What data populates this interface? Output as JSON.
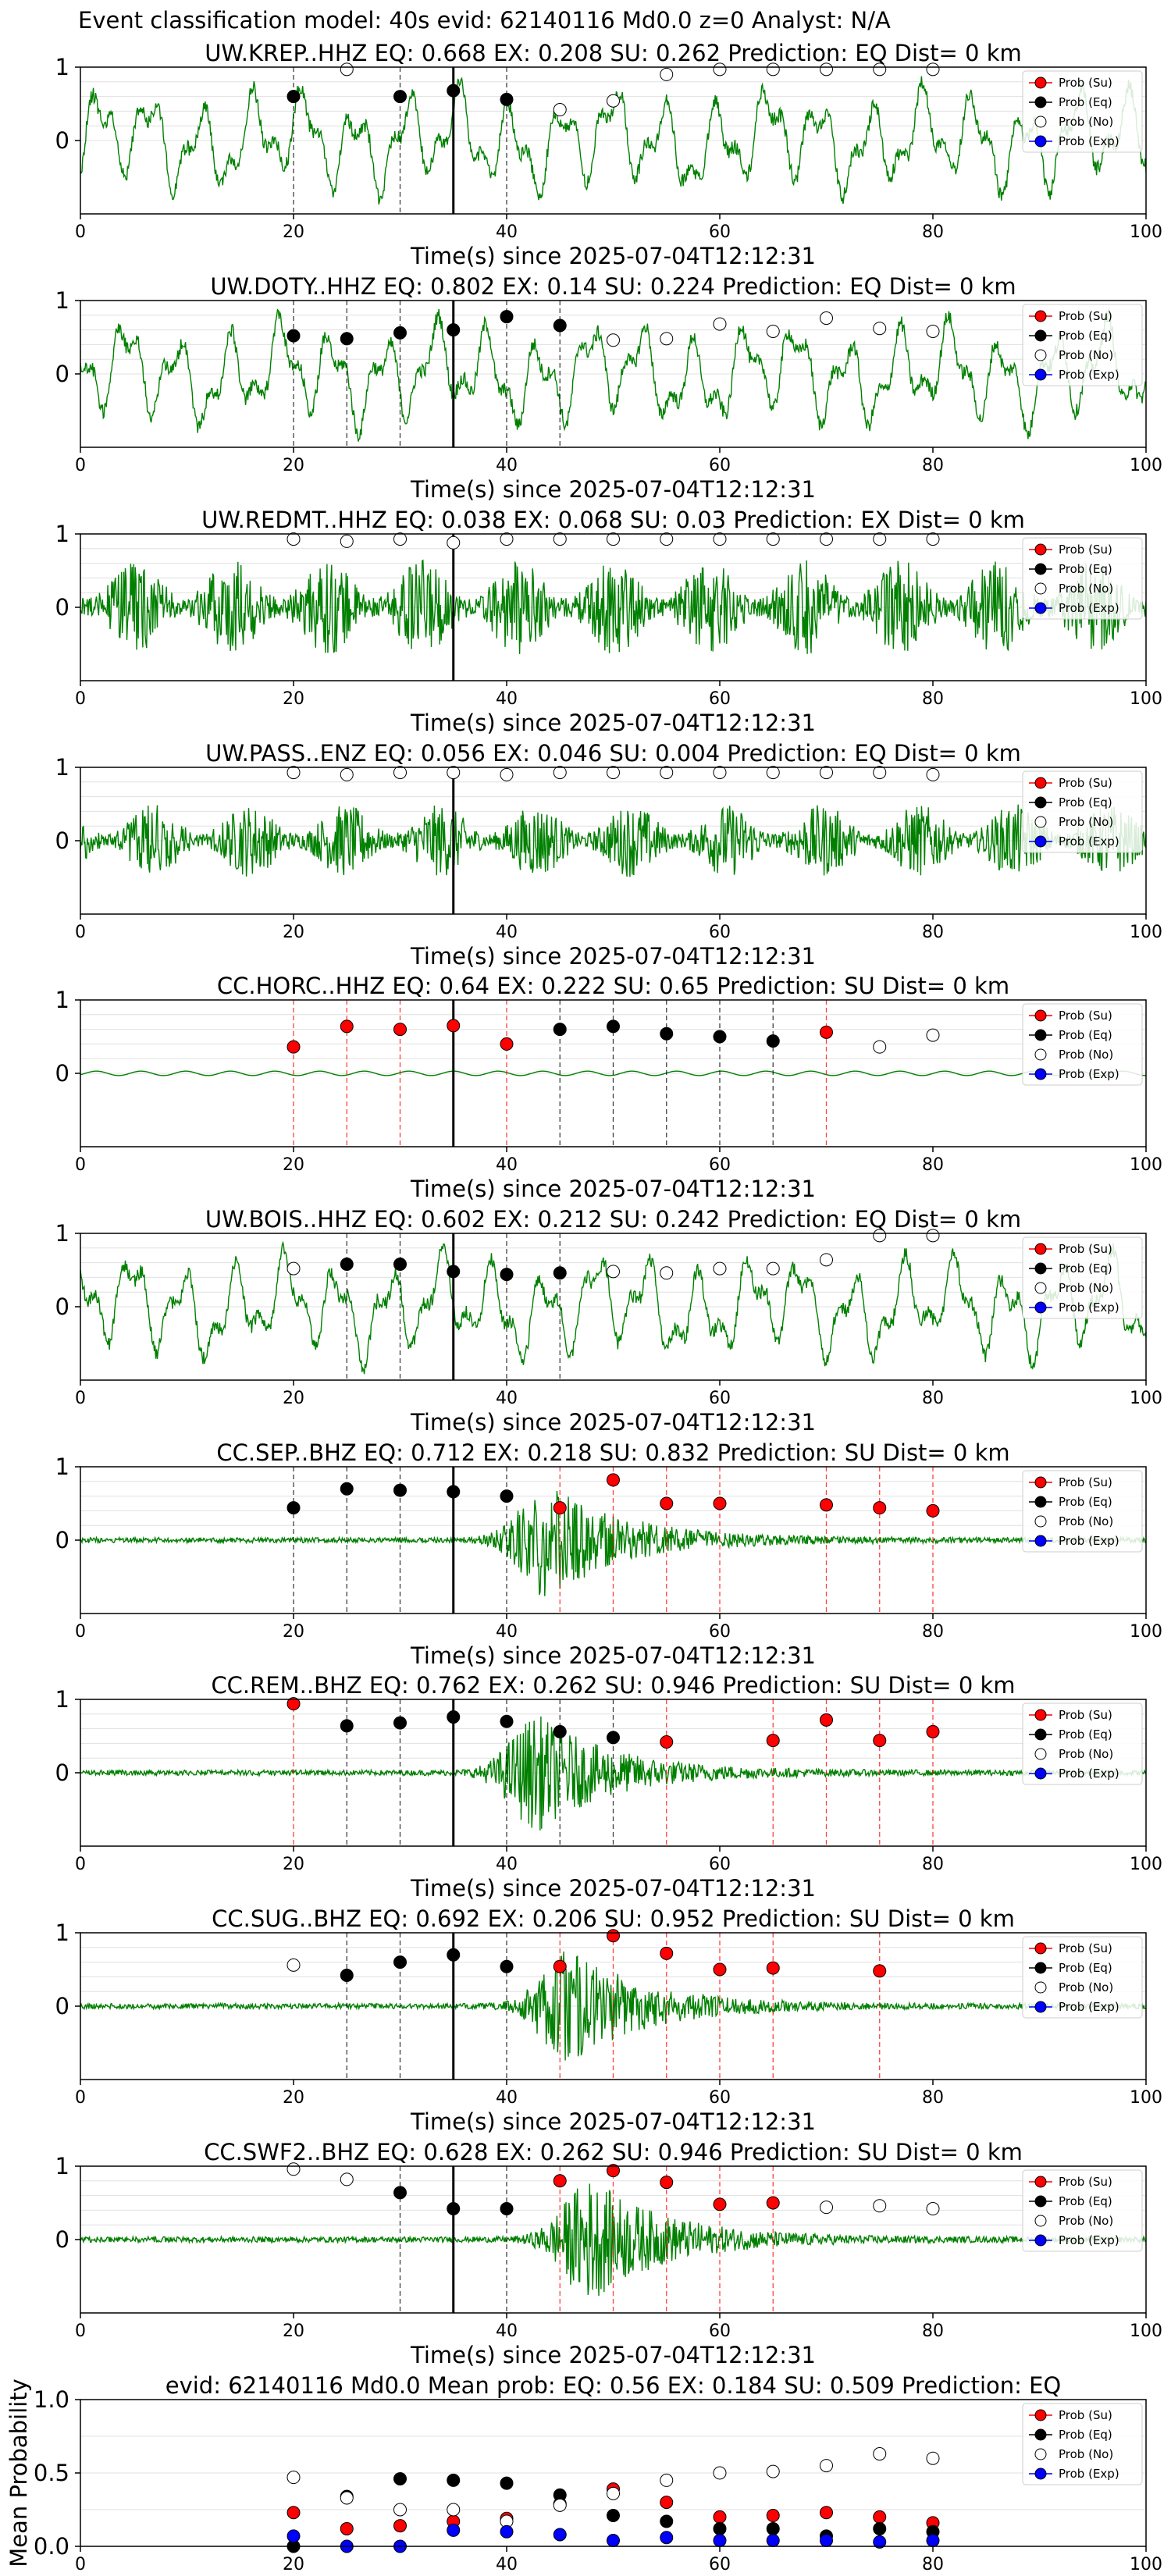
{
  "figure": {
    "suptitle": "Event classification model: 40s evid: 62140116 Md0.0 z=0 Analyst: N/A"
  },
  "legend_labels": [
    "Prob (Su)",
    "Prob (Eq)",
    "Prob (No)",
    "Prob (Exp)"
  ],
  "colors": {
    "su": "#ff0000",
    "eq": "#000000",
    "no": "#ffffff",
    "exp": "#0000ff",
    "trace": "#008000",
    "su_line": "#ff0000",
    "eq_line": "#000000",
    "grid": "#e0e0e0"
  },
  "x_tick_labels": [
    "0",
    "20",
    "40",
    "60",
    "80",
    "100"
  ],
  "chart_data": [
    {
      "type": "line",
      "title": "UW.KREP..HHZ   EQ: 0.668  EX: 0.208  SU: 0.262   Prediction: EQ    Dist= 0 km",
      "xlabel": "Time(s) since 2025-07-04T12:12:31",
      "ylabel": "",
      "xlim": [
        0,
        100
      ],
      "ylim": [
        -1,
        1
      ],
      "yticks": [
        "1",
        "0"
      ],
      "trace": {
        "style": "lowfreq",
        "amplitude": 0.8,
        "seed": 11
      },
      "pick_time": 35,
      "probabilities": {
        "x": [
          20,
          25,
          30,
          35,
          40,
          45,
          50,
          55,
          60,
          65,
          70,
          75,
          80
        ],
        "class": [
          "eq",
          "no",
          "eq",
          "eq",
          "eq",
          "no",
          "no",
          "no",
          "no",
          "no",
          "no",
          "no",
          "no"
        ],
        "value": [
          0.6,
          0.97,
          0.6,
          0.68,
          0.56,
          0.42,
          0.54,
          0.9,
          0.97,
          0.97,
          0.97,
          0.97,
          0.97
        ]
      }
    },
    {
      "type": "line",
      "title": "UW.DOTY..HHZ   EQ: 0.802  EX: 0.14  SU: 0.224   Prediction: EQ    Dist= 0 km",
      "xlabel": "Time(s) since 2025-07-04T12:12:31",
      "ylabel": "",
      "xlim": [
        0,
        100
      ],
      "ylim": [
        -1,
        1
      ],
      "yticks": [
        "1",
        "0"
      ],
      "trace": {
        "style": "lowfreq",
        "amplitude": 0.8,
        "seed": 23
      },
      "pick_time": 35,
      "probabilities": {
        "x": [
          20,
          25,
          30,
          35,
          40,
          45,
          50,
          55,
          60,
          65,
          70,
          75,
          80
        ],
        "class": [
          "eq",
          "eq",
          "eq",
          "eq",
          "eq",
          "eq",
          "no",
          "no",
          "no",
          "no",
          "no",
          "no",
          "no"
        ],
        "value": [
          0.52,
          0.48,
          0.56,
          0.6,
          0.78,
          0.66,
          0.46,
          0.48,
          0.68,
          0.58,
          0.76,
          0.62,
          0.58
        ]
      }
    },
    {
      "type": "line",
      "title": "UW.REDMT..HHZ   EQ: 0.038  EX: 0.068  SU: 0.03   Prediction: EX    Dist= 0 km",
      "xlabel": "Time(s) since 2025-07-04T12:12:31",
      "ylabel": "",
      "xlim": [
        0,
        100
      ],
      "ylim": [
        -1,
        1
      ],
      "yticks": [
        "1",
        "0"
      ],
      "trace": {
        "style": "noisy",
        "amplitude": 0.65,
        "seed": 37
      },
      "pick_time": 35,
      "probabilities": {
        "x": [
          20,
          25,
          30,
          35,
          40,
          45,
          50,
          55,
          60,
          65,
          70,
          75,
          80
        ],
        "class": [
          "no",
          "no",
          "no",
          "no",
          "no",
          "no",
          "no",
          "no",
          "no",
          "no",
          "no",
          "no",
          "no"
        ],
        "value": [
          0.93,
          0.9,
          0.93,
          0.88,
          0.93,
          0.93,
          0.93,
          0.93,
          0.93,
          0.93,
          0.93,
          0.93,
          0.93
        ]
      }
    },
    {
      "type": "line",
      "title": "UW.PASS..ENZ   EQ: 0.056  EX: 0.046  SU: 0.004   Prediction: EQ    Dist= 0 km",
      "xlabel": "Time(s) since 2025-07-04T12:12:31",
      "ylabel": "",
      "xlim": [
        0,
        100
      ],
      "ylim": [
        -1,
        1
      ],
      "yticks": [
        "1",
        "0"
      ],
      "trace": {
        "style": "noisy",
        "amplitude": 0.5,
        "seed": 41
      },
      "pick_time": 35,
      "probabilities": {
        "x": [
          20,
          25,
          30,
          35,
          40,
          45,
          50,
          55,
          60,
          65,
          70,
          75,
          80
        ],
        "class": [
          "no",
          "no",
          "no",
          "no",
          "no",
          "no",
          "no",
          "no",
          "no",
          "no",
          "no",
          "no",
          "no"
        ],
        "value": [
          0.93,
          0.9,
          0.93,
          0.93,
          0.9,
          0.93,
          0.93,
          0.93,
          0.93,
          0.93,
          0.93,
          0.93,
          0.9
        ]
      }
    },
    {
      "type": "line",
      "title": "CC.HORC..HHZ   EQ: 0.64  EX: 0.222  SU: 0.65   Prediction: SU    Dist= 0 km",
      "xlabel": "Time(s) since 2025-07-04T12:12:31",
      "ylabel": "",
      "xlim": [
        0,
        100
      ],
      "ylim": [
        -1,
        1
      ],
      "yticks": [
        "1",
        "0"
      ],
      "trace": {
        "style": "flat",
        "amplitude": 0.03,
        "seed": 53
      },
      "pick_time": 35,
      "probabilities": {
        "x": [
          20,
          25,
          30,
          35,
          40,
          45,
          50,
          55,
          60,
          65,
          70,
          75,
          80
        ],
        "class": [
          "su",
          "su",
          "su",
          "su",
          "su",
          "eq",
          "eq",
          "eq",
          "eq",
          "eq",
          "su",
          "no",
          "no"
        ],
        "value": [
          0.36,
          0.64,
          0.6,
          0.65,
          0.4,
          0.6,
          0.64,
          0.54,
          0.5,
          0.44,
          0.56,
          0.36,
          0.52
        ]
      }
    },
    {
      "type": "line",
      "title": "UW.BOIS..HHZ   EQ: 0.602  EX: 0.212  SU: 0.242   Prediction: EQ    Dist= 0 km",
      "xlabel": "Time(s) since 2025-07-04T12:12:31",
      "ylabel": "",
      "xlim": [
        0,
        100
      ],
      "ylim": [
        -1,
        1
      ],
      "yticks": [
        "1",
        "0"
      ],
      "trace": {
        "style": "lowfreq",
        "amplitude": 0.8,
        "seed": 67
      },
      "pick_time": 35,
      "probabilities": {
        "x": [
          20,
          25,
          30,
          35,
          40,
          45,
          50,
          55,
          60,
          65,
          70,
          75,
          80
        ],
        "class": [
          "no",
          "eq",
          "eq",
          "eq",
          "eq",
          "eq",
          "no",
          "no",
          "no",
          "no",
          "no",
          "no",
          "no"
        ],
        "value": [
          0.52,
          0.58,
          0.58,
          0.48,
          0.44,
          0.46,
          0.48,
          0.46,
          0.52,
          0.52,
          0.64,
          0.97,
          0.97
        ]
      }
    },
    {
      "type": "line",
      "title": "CC.SEP..BHZ   EQ: 0.712  EX: 0.218  SU: 0.832   Prediction: SU    Dist= 0 km",
      "xlabel": "Time(s) since 2025-07-04T12:12:31",
      "ylabel": "",
      "xlim": [
        0,
        100
      ],
      "ylim": [
        -1,
        1
      ],
      "yticks": [
        "1",
        "0"
      ],
      "trace": {
        "style": "burst",
        "amplitude": 0.9,
        "burst_center": 44,
        "seed": 71
      },
      "pick_time": 35,
      "probabilities": {
        "x": [
          20,
          25,
          30,
          35,
          40,
          45,
          50,
          55,
          60,
          70,
          75,
          80
        ],
        "class": [
          "eq",
          "eq",
          "eq",
          "eq",
          "eq",
          "su",
          "su",
          "su",
          "su",
          "su",
          "su",
          "su"
        ],
        "value": [
          0.44,
          0.7,
          0.68,
          0.66,
          0.6,
          0.44,
          0.82,
          0.5,
          0.5,
          0.48,
          0.44,
          0.4
        ]
      }
    },
    {
      "type": "line",
      "title": "CC.REM..BHZ   EQ: 0.762  EX: 0.262  SU: 0.946   Prediction: SU    Dist= 0 km",
      "xlabel": "Time(s) since 2025-07-04T12:12:31",
      "ylabel": "",
      "xlim": [
        0,
        100
      ],
      "ylim": [
        -1,
        1
      ],
      "yticks": [
        "1",
        "0"
      ],
      "trace": {
        "style": "burst",
        "amplitude": 0.9,
        "burst_center": 43,
        "seed": 83
      },
      "pick_time": 35,
      "probabilities": {
        "x": [
          20,
          25,
          30,
          35,
          40,
          45,
          50,
          55,
          65,
          70,
          75,
          80
        ],
        "class": [
          "su",
          "eq",
          "eq",
          "eq",
          "eq",
          "eq",
          "eq",
          "su",
          "su",
          "su",
          "su",
          "su"
        ],
        "value": [
          0.94,
          0.64,
          0.68,
          0.76,
          0.7,
          0.56,
          0.48,
          0.42,
          0.44,
          0.72,
          0.44,
          0.56
        ]
      }
    },
    {
      "type": "line",
      "title": "CC.SUG..BHZ   EQ: 0.692  EX: 0.206  SU: 0.952   Prediction: SU    Dist= 0 km",
      "xlabel": "Time(s) since 2025-07-04T12:12:31",
      "ylabel": "",
      "xlim": [
        0,
        100
      ],
      "ylim": [
        -1,
        1
      ],
      "yticks": [
        "1",
        "0"
      ],
      "trace": {
        "style": "burst",
        "amplitude": 0.9,
        "burst_center": 46,
        "seed": 97
      },
      "pick_time": 35,
      "probabilities": {
        "x": [
          20,
          25,
          30,
          35,
          40,
          45,
          50,
          55,
          60,
          65,
          75
        ],
        "class": [
          "no",
          "eq",
          "eq",
          "eq",
          "eq",
          "su",
          "su",
          "su",
          "su",
          "su",
          "su"
        ],
        "value": [
          0.56,
          0.42,
          0.6,
          0.7,
          0.54,
          0.54,
          0.96,
          0.72,
          0.5,
          0.52,
          0.48
        ]
      }
    },
    {
      "type": "line",
      "title": "CC.SWF2..BHZ   EQ: 0.628  EX: 0.262  SU: 0.946   Prediction: SU    Dist= 0 km",
      "xlabel": "Time(s) since 2025-07-04T12:12:31",
      "ylabel": "",
      "xlim": [
        0,
        100
      ],
      "ylim": [
        -1,
        1
      ],
      "yticks": [
        "1",
        "0"
      ],
      "trace": {
        "style": "burst",
        "amplitude": 0.95,
        "burst_center": 48,
        "seed": 101
      },
      "pick_time": 35,
      "probabilities": {
        "x": [
          20,
          25,
          30,
          35,
          40,
          45,
          50,
          55,
          60,
          65,
          70,
          75,
          80
        ],
        "class": [
          "no",
          "no",
          "eq",
          "eq",
          "eq",
          "su",
          "su",
          "su",
          "su",
          "su",
          "no",
          "no",
          "no"
        ],
        "value": [
          0.96,
          0.82,
          0.64,
          0.42,
          0.42,
          0.8,
          0.94,
          0.78,
          0.48,
          0.5,
          0.44,
          0.46,
          0.42
        ]
      }
    },
    {
      "type": "scatter",
      "title": "evid: 62140116  Md0.0   Mean prob:   EQ: 0.56  EX: 0.184  SU: 0.509   Prediction: EQ",
      "xlabel": "",
      "ylabel": "Mean Probability",
      "xlim": [
        0,
        100
      ],
      "ylim": [
        0,
        1
      ],
      "yticks": [
        "1.0",
        "0.5",
        "0.0"
      ],
      "x": [
        20,
        25,
        30,
        35,
        40,
        45,
        50,
        55,
        60,
        65,
        70,
        75,
        80
      ],
      "series": [
        {
          "name": "Prob (Su)",
          "class": "su",
          "values": [
            0.23,
            0.12,
            0.14,
            0.17,
            0.19,
            0.29,
            0.39,
            0.3,
            0.2,
            0.21,
            0.23,
            0.2,
            0.16
          ]
        },
        {
          "name": "Prob (Eq)",
          "class": "eq",
          "values": [
            0.0,
            0.34,
            0.46,
            0.45,
            0.43,
            0.35,
            0.21,
            0.17,
            0.12,
            0.12,
            0.07,
            0.12,
            0.1
          ]
        },
        {
          "name": "Prob (No)",
          "class": "no",
          "values": [
            0.47,
            0.33,
            0.25,
            0.25,
            0.17,
            0.28,
            0.36,
            0.45,
            0.5,
            0.51,
            0.55,
            0.63,
            0.6
          ]
        },
        {
          "name": "Prob (Exp)",
          "class": "exp",
          "values": [
            0.07,
            0.0,
            0.0,
            0.11,
            0.1,
            0.08,
            0.04,
            0.06,
            0.04,
            0.04,
            0.04,
            0.03,
            0.04
          ]
        }
      ]
    }
  ]
}
